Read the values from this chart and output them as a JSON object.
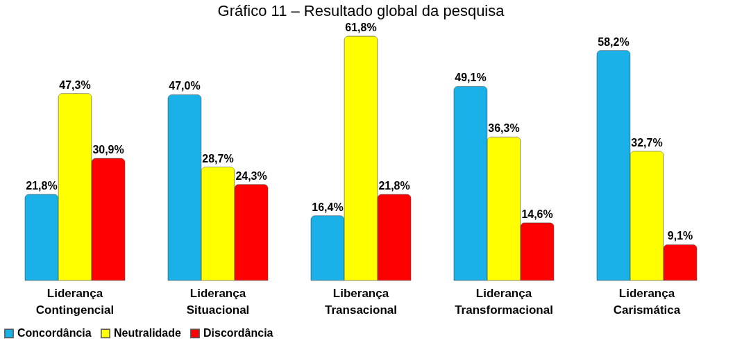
{
  "chart_data": {
    "type": "bar",
    "title": "Gráfico 11 – Resultado global da pesquisa",
    "categories": [
      "Liderança Contingencial",
      "Liderança Situacional",
      "Liberança Transacional",
      "Liderança Transformacional",
      "Liderança Carismática"
    ],
    "series": [
      {
        "name": "Concordância",
        "color": "#1ab0e8",
        "values": [
          21.8,
          47.0,
          16.4,
          49.1,
          58.2
        ],
        "value_labels": [
          "21,8%",
          "47,0%",
          "16,4%",
          "49,1%",
          "58,2%"
        ]
      },
      {
        "name": "Neutralidade",
        "color": "#ffff00",
        "values": [
          47.3,
          28.7,
          61.8,
          36.3,
          32.7
        ],
        "value_labels": [
          "47,3%",
          "28,7%",
          "61,8%",
          "36,3%",
          "32,7%"
        ]
      },
      {
        "name": "Discordância",
        "color": "#ff0000",
        "values": [
          30.9,
          24.3,
          21.8,
          14.6,
          9.1
        ],
        "value_labels": [
          "30,9%",
          "24,3%",
          "21,8%",
          "14,6%",
          "9,1%"
        ]
      }
    ],
    "legend": "bottom"
  }
}
